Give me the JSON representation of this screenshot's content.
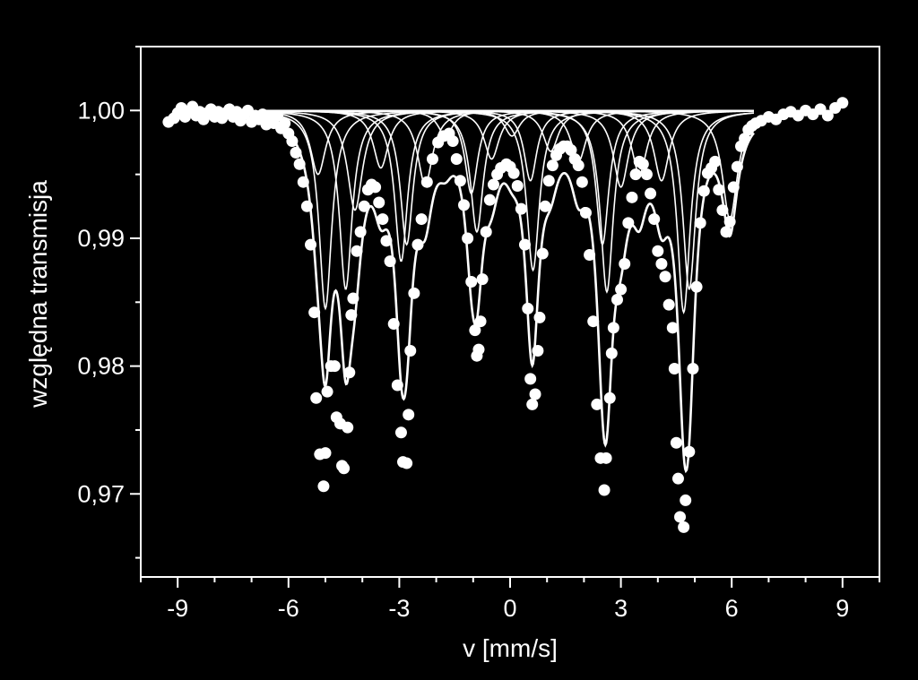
{
  "chart_data": {
    "type": "scatter",
    "title": "",
    "xlabel": "v [mm/s]",
    "ylabel": "względna transmisja",
    "xlim": [
      -10,
      10
    ],
    "ylim": [
      0.9635,
      1.005
    ],
    "x_ticks": [
      {
        "value": -9,
        "label": "-9"
      },
      {
        "value": -6,
        "label": "-6"
      },
      {
        "value": -3,
        "label": "-3"
      },
      {
        "value": 0,
        "label": "0"
      },
      {
        "value": 3,
        "label": "3"
      },
      {
        "value": 6,
        "label": "6"
      },
      {
        "value": 9,
        "label": "9"
      }
    ],
    "y_ticks": [
      {
        "value": 1.0,
        "label": "1,00"
      },
      {
        "value": 0.99,
        "label": "0,99"
      },
      {
        "value": 0.98,
        "label": "0,98"
      },
      {
        "value": 0.97,
        "label": "0,97"
      }
    ],
    "grid": false,
    "colors": {
      "background": "#000000",
      "foreground": "#ffffff"
    },
    "components": [
      {
        "lines": [
          {
            "v": -5.0,
            "d": 0.0155
          },
          {
            "v": -2.95,
            "d": 0.0118
          },
          {
            "v": -0.9,
            "d": 0.0095
          },
          {
            "v": 0.62,
            "d": 0.0125
          },
          {
            "v": 2.62,
            "d": 0.0142
          },
          {
            "v": 4.7,
            "d": 0.0158
          }
        ],
        "width": 0.42
      },
      {
        "lines": [
          {
            "v": -4.45,
            "d": 0.014
          },
          {
            "v": -2.8,
            "d": 0.0105
          },
          {
            "v": -1.05,
            "d": 0.0065
          },
          {
            "v": 0.55,
            "d": 0.0055
          },
          {
            "v": 2.5,
            "d": 0.0105
          },
          {
            "v": 4.85,
            "d": 0.014
          }
        ],
        "width": 0.42
      },
      {
        "lines": [
          {
            "v": -5.2,
            "d": 0.005
          },
          {
            "v": -3.5,
            "d": 0.0045
          },
          {
            "v": -1.75,
            "d": 0.002
          },
          {
            "v": 0.05,
            "d": 0.002
          },
          {
            "v": 1.85,
            "d": 0.004
          },
          {
            "v": 3.5,
            "d": 0.005
          }
        ],
        "width": 0.5
      },
      {
        "lines": [
          {
            "v": -4.2,
            "d": 0.0078
          },
          {
            "v": -2.3,
            "d": 0.0058
          },
          {
            "v": -0.5,
            "d": 0.0038
          },
          {
            "v": 1.1,
            "d": 0.0032
          },
          {
            "v": 3.0,
            "d": 0.006
          },
          {
            "v": 4.1,
            "d": 0.0055
          },
          {
            "v": 5.95,
            "d": 0.0085
          }
        ],
        "width": 0.5
      }
    ],
    "series": [
      {
        "marker": "circle",
        "points": [
          [
            -9.25,
            0.9991
          ],
          [
            -9.1,
            0.9994
          ],
          [
            -9.0,
            0.9998
          ],
          [
            -8.9,
            1.0002
          ],
          [
            -8.8,
            0.9995
          ],
          [
            -8.7,
            0.9999
          ],
          [
            -8.6,
            1.0003
          ],
          [
            -8.5,
            0.9996
          ],
          [
            -8.4,
            0.9999
          ],
          [
            -8.3,
            0.9993
          ],
          [
            -8.2,
            0.9998
          ],
          [
            -8.1,
            1.0001
          ],
          [
            -8.0,
            0.9995
          ],
          [
            -7.9,
            0.9999
          ],
          [
            -7.8,
            0.9994
          ],
          [
            -7.7,
            0.9998
          ],
          [
            -7.6,
            1.0001
          ],
          [
            -7.5,
            0.9995
          ],
          [
            -7.4,
            0.9999
          ],
          [
            -7.3,
            0.9992
          ],
          [
            -7.2,
            0.9997
          ],
          [
            -7.1,
            1.0
          ],
          [
            -7.0,
            0.9991
          ],
          [
            -6.9,
            0.9996
          ],
          [
            -6.8,
            0.9993
          ],
          [
            -6.7,
            0.9997
          ],
          [
            -6.6,
            0.9989
          ],
          [
            -6.5,
            0.9994
          ],
          [
            -6.4,
            0.999
          ],
          [
            -6.3,
            0.9996
          ],
          [
            -6.2,
            0.9986
          ],
          [
            -6.1,
            0.999
          ],
          [
            -6.0,
            0.9982
          ],
          [
            -5.9,
            0.9976
          ],
          [
            -5.8,
            0.9967
          ],
          [
            -5.7,
            0.9958
          ],
          [
            -5.6,
            0.9944
          ],
          [
            -5.5,
            0.9925
          ],
          [
            -5.4,
            0.9895
          ],
          [
            -5.3,
            0.9842
          ],
          [
            -5.25,
            0.9775
          ],
          [
            -5.15,
            0.9731
          ],
          [
            -5.05,
            0.9706
          ],
          [
            -5.0,
            0.9732
          ],
          [
            -4.95,
            0.978
          ],
          [
            -4.85,
            0.98
          ],
          [
            -4.75,
            0.98
          ],
          [
            -4.7,
            0.976
          ],
          [
            -4.6,
            0.9755
          ],
          [
            -4.55,
            0.9722
          ],
          [
            -4.5,
            0.972
          ],
          [
            -4.4,
            0.9752
          ],
          [
            -4.35,
            0.9795
          ],
          [
            -4.3,
            0.984
          ],
          [
            -4.25,
            0.9853
          ],
          [
            -4.15,
            0.989
          ],
          [
            -4.05,
            0.9905
          ],
          [
            -3.95,
            0.9925
          ],
          [
            -3.85,
            0.9938
          ],
          [
            -3.75,
            0.9942
          ],
          [
            -3.65,
            0.994
          ],
          [
            -3.55,
            0.9928
          ],
          [
            -3.45,
            0.9915
          ],
          [
            -3.35,
            0.9898
          ],
          [
            -3.25,
            0.9882
          ],
          [
            -3.15,
            0.9833
          ],
          [
            -3.05,
            0.9785
          ],
          [
            -2.95,
            0.9748
          ],
          [
            -2.9,
            0.9725
          ],
          [
            -2.8,
            0.9724
          ],
          [
            -2.75,
            0.9762
          ],
          [
            -2.7,
            0.9812
          ],
          [
            -2.6,
            0.9857
          ],
          [
            -2.5,
            0.9895
          ],
          [
            -2.4,
            0.9915
          ],
          [
            -2.25,
            0.9944
          ],
          [
            -2.1,
            0.9962
          ],
          [
            -1.95,
            0.9975
          ],
          [
            -1.8,
            0.998
          ],
          [
            -1.65,
            0.9982
          ],
          [
            -1.55,
            0.9976
          ],
          [
            -1.45,
            0.9962
          ],
          [
            -1.35,
            0.9945
          ],
          [
            -1.25,
            0.9926
          ],
          [
            -1.15,
            0.99
          ],
          [
            -1.05,
            0.9866
          ],
          [
            -0.95,
            0.9828
          ],
          [
            -0.9,
            0.9808
          ],
          [
            -0.85,
            0.9813
          ],
          [
            -0.8,
            0.9835
          ],
          [
            -0.75,
            0.9868
          ],
          [
            -0.65,
            0.9905
          ],
          [
            -0.55,
            0.993
          ],
          [
            -0.45,
            0.9942
          ],
          [
            -0.35,
            0.995
          ],
          [
            -0.25,
            0.9955
          ],
          [
            -0.1,
            0.9958
          ],
          [
            0.0,
            0.9956
          ],
          [
            0.1,
            0.9951
          ],
          [
            0.2,
            0.9941
          ],
          [
            0.3,
            0.9923
          ],
          [
            0.4,
            0.9895
          ],
          [
            0.48,
            0.9845
          ],
          [
            0.55,
            0.979
          ],
          [
            0.6,
            0.977
          ],
          [
            0.68,
            0.9778
          ],
          [
            0.75,
            0.9812
          ],
          [
            0.8,
            0.9838
          ],
          [
            0.88,
            0.9888
          ],
          [
            0.95,
            0.9925
          ],
          [
            1.05,
            0.9945
          ],
          [
            1.15,
            0.9957
          ],
          [
            1.25,
            0.9965
          ],
          [
            1.35,
            0.997
          ],
          [
            1.45,
            0.9972
          ],
          [
            1.55,
            0.9972
          ],
          [
            1.65,
            0.9969
          ],
          [
            1.75,
            0.9962
          ],
          [
            1.85,
            0.9957
          ],
          [
            1.95,
            0.9944
          ],
          [
            2.05,
            0.992
          ],
          [
            2.15,
            0.9887
          ],
          [
            2.25,
            0.9835
          ],
          [
            2.35,
            0.977
          ],
          [
            2.45,
            0.9728
          ],
          [
            2.55,
            0.9703
          ],
          [
            2.6,
            0.9728
          ],
          [
            2.7,
            0.9775
          ],
          [
            2.75,
            0.981
          ],
          [
            2.8,
            0.983
          ],
          [
            2.9,
            0.9852
          ],
          [
            3.0,
            0.986
          ],
          [
            3.1,
            0.988
          ],
          [
            3.2,
            0.9912
          ],
          [
            3.3,
            0.9932
          ],
          [
            3.4,
            0.995
          ],
          [
            3.5,
            0.996
          ],
          [
            3.6,
            0.9958
          ],
          [
            3.7,
            0.995
          ],
          [
            3.8,
            0.9935
          ],
          [
            3.9,
            0.9915
          ],
          [
            4.0,
            0.989
          ],
          [
            4.1,
            0.988
          ],
          [
            4.2,
            0.987
          ],
          [
            4.3,
            0.9848
          ],
          [
            4.4,
            0.983
          ],
          [
            4.45,
            0.9798
          ],
          [
            4.5,
            0.974
          ],
          [
            4.55,
            0.9712
          ],
          [
            4.6,
            0.9682
          ],
          [
            4.7,
            0.9674
          ],
          [
            4.75,
            0.9695
          ],
          [
            4.85,
            0.9733
          ],
          [
            4.95,
            0.9798
          ],
          [
            5.05,
            0.9862
          ],
          [
            5.15,
            0.9912
          ],
          [
            5.25,
            0.9937
          ],
          [
            5.35,
            0.9951
          ],
          [
            5.45,
            0.9955
          ],
          [
            5.55,
            0.996
          ],
          [
            5.65,
            0.9938
          ],
          [
            5.75,
            0.9922
          ],
          [
            5.85,
            0.9905
          ],
          [
            5.95,
            0.9913
          ],
          [
            6.05,
            0.994
          ],
          [
            6.15,
            0.9956
          ],
          [
            6.25,
            0.9972
          ],
          [
            6.35,
            0.9978
          ],
          [
            6.45,
            0.9985
          ],
          [
            6.55,
            0.9988
          ],
          [
            6.65,
            0.999
          ],
          [
            6.8,
            0.9992
          ],
          [
            7.0,
            0.9995
          ],
          [
            7.2,
            0.9993
          ],
          [
            7.4,
            0.9997
          ],
          [
            7.6,
            0.9999
          ],
          [
            7.8,
            0.9996
          ],
          [
            8.0,
            1.0
          ],
          [
            8.2,
            0.9997
          ],
          [
            8.4,
            1.0001
          ],
          [
            8.6,
            0.9996
          ],
          [
            8.8,
            1.0002
          ],
          [
            9.0,
            1.0006
          ]
        ]
      }
    ]
  }
}
